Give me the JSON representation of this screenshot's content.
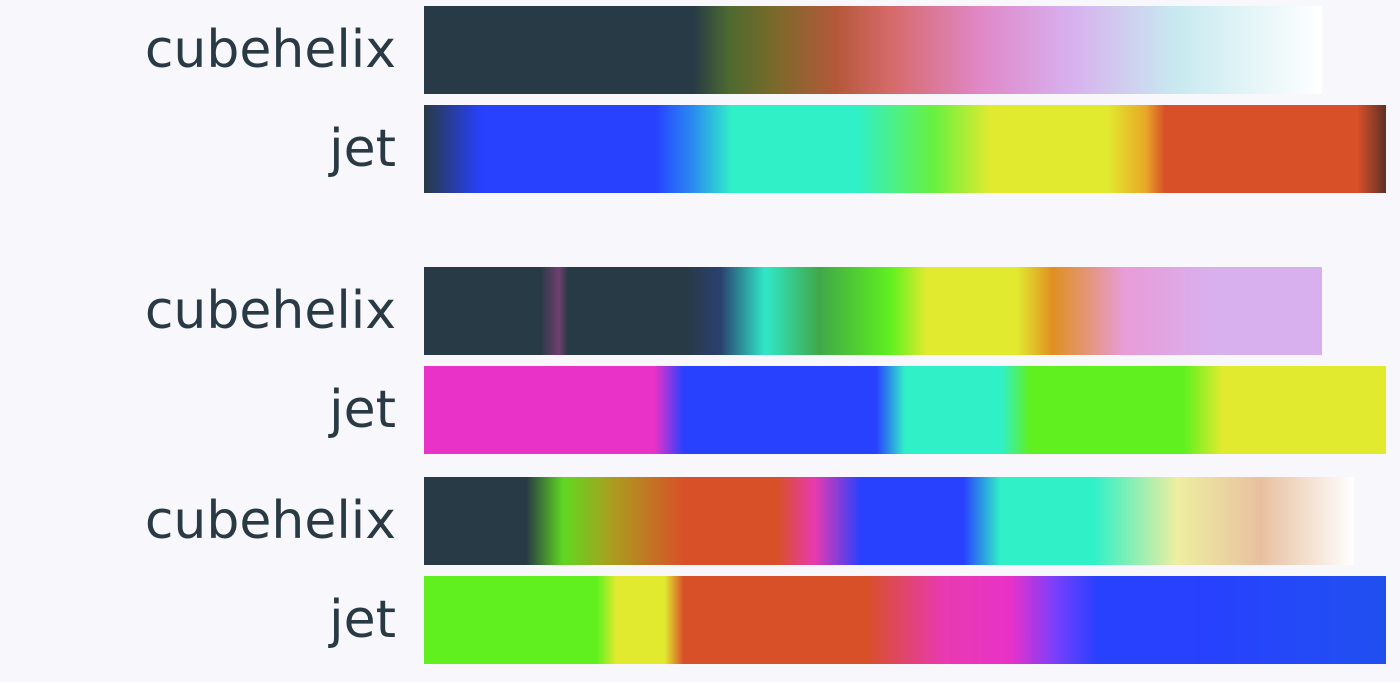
{
  "colormaps": [
    {
      "label": "cubehelix",
      "stops": [
        [
          "#283a45",
          0
        ],
        [
          "#283a45",
          30
        ],
        [
          "#4d6a30",
          34
        ],
        [
          "#7a6a2a",
          39
        ],
        [
          "#b5583a",
          46
        ],
        [
          "#d66a6a",
          52
        ],
        [
          "#e088c8",
          62
        ],
        [
          "#d8b0ee",
          72
        ],
        [
          "#c8eaf0",
          84
        ],
        [
          "#ffffff",
          100
        ]
      ]
    },
    {
      "label": "jet",
      "stops": [
        [
          "#283a45",
          0
        ],
        [
          "#2840ff",
          6
        ],
        [
          "#2840ff",
          24
        ],
        [
          "#2a8cf0",
          28
        ],
        [
          "#30f0c8",
          32
        ],
        [
          "#30f0c8",
          45
        ],
        [
          "#68f040",
          53
        ],
        [
          "#e2ea30",
          59
        ],
        [
          "#e2ea30",
          71
        ],
        [
          "#e8a828",
          75
        ],
        [
          "#d85028",
          77
        ],
        [
          "#d85028",
          97
        ],
        [
          "#603028",
          100
        ]
      ]
    },
    {
      "label": "cubehelix",
      "stops": [
        [
          "#283a45",
          0
        ],
        [
          "#283a45",
          13
        ],
        [
          "#704070",
          15
        ],
        [
          "#283a45",
          16
        ],
        [
          "#283a45",
          29
        ],
        [
          "#2a4070",
          33
        ],
        [
          "#30e8c8",
          38
        ],
        [
          "#40a848",
          44
        ],
        [
          "#60f020",
          52
        ],
        [
          "#e2ea30",
          56
        ],
        [
          "#e2ea30",
          66
        ],
        [
          "#e09020",
          70
        ],
        [
          "#e89cd8",
          78
        ],
        [
          "#d8b0ee",
          88
        ],
        [
          "#d8b0ee",
          100
        ]
      ]
    },
    {
      "label": "jet",
      "stops": [
        [
          "#e832c8",
          0
        ],
        [
          "#e832c8",
          24
        ],
        [
          "#2840ff",
          27
        ],
        [
          "#2840ff",
          47
        ],
        [
          "#30f0c8",
          50
        ],
        [
          "#30f0c8",
          60
        ],
        [
          "#60f020",
          63
        ],
        [
          "#60f020",
          79
        ],
        [
          "#e2ea30",
          83
        ],
        [
          "#e2ea30",
          100
        ]
      ]
    },
    {
      "label": "cubehelix",
      "stops": [
        [
          "#283a45",
          0
        ],
        [
          "#283a45",
          11
        ],
        [
          "#60d820",
          15
        ],
        [
          "#a8a020",
          20
        ],
        [
          "#d85028",
          28
        ],
        [
          "#d85028",
          38
        ],
        [
          "#e83ab0",
          42
        ],
        [
          "#2840ff",
          47
        ],
        [
          "#2840ff",
          58
        ],
        [
          "#30f0c8",
          62
        ],
        [
          "#30f0c8",
          72
        ],
        [
          "#eeeea0",
          81
        ],
        [
          "#e8c0a0",
          90
        ],
        [
          "#ffffff",
          100
        ]
      ]
    },
    {
      "label": "jet",
      "stops": [
        [
          "#60f020",
          0
        ],
        [
          "#60f020",
          18
        ],
        [
          "#e2ea30",
          20
        ],
        [
          "#e2ea30",
          25
        ],
        [
          "#d85028",
          27
        ],
        [
          "#d85028",
          46
        ],
        [
          "#e83ab0",
          54
        ],
        [
          "#e832c8",
          61
        ],
        [
          "#7040ff",
          66
        ],
        [
          "#2840ff",
          70
        ],
        [
          "#2840ff",
          80
        ],
        [
          "#2050f0",
          100
        ]
      ]
    }
  ]
}
